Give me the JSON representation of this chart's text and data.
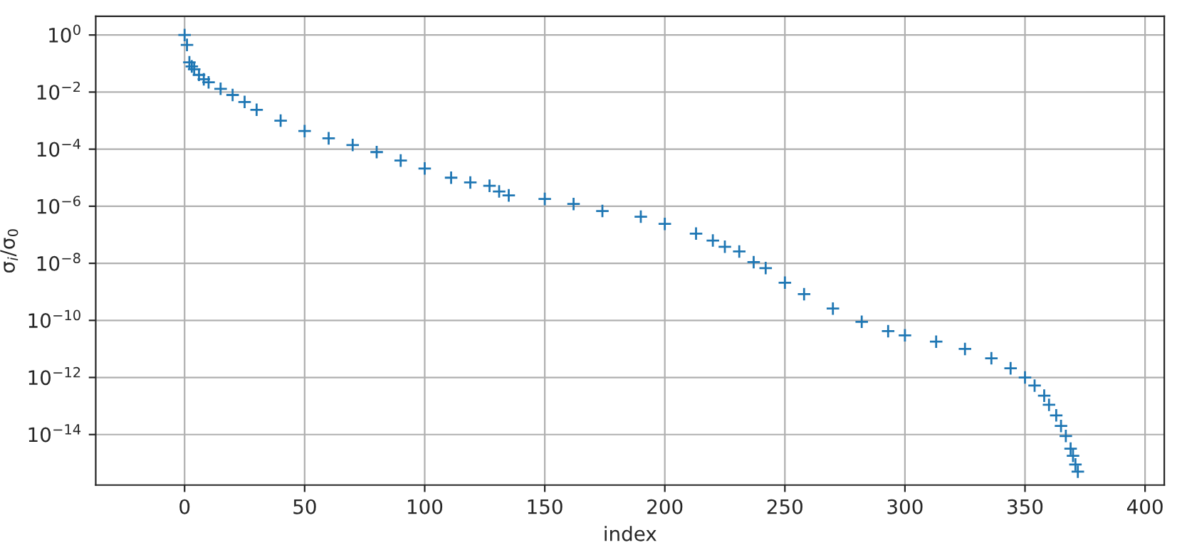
{
  "chart_data": {
    "type": "scatter",
    "xlabel": "index",
    "ylabel": "σ$_{i}$/σ$_{0}$",
    "log": "y",
    "grid": true,
    "marker": "cross",
    "xlim": [
      -37,
      408
    ],
    "xticks": [
      0,
      50,
      100,
      150,
      200,
      250,
      300,
      350,
      400
    ],
    "ylim": [
      1.7e-16,
      4.5
    ],
    "yticks": [
      {
        "value": 1,
        "label": "10$^{0}$"
      },
      {
        "value": 0.01,
        "label": "10$^{−2}$"
      },
      {
        "value": 0.0001,
        "label": "10$^{−4}$"
      },
      {
        "value": 1e-06,
        "label": "10$^{−6}$"
      },
      {
        "value": 1e-08,
        "label": "10$^{−8}$"
      },
      {
        "value": 1e-10,
        "label": "10$^{−10}$"
      },
      {
        "value": 1e-12,
        "label": "10$^{−12}$"
      },
      {
        "value": 1e-14,
        "label": "10$^{−14}$"
      }
    ],
    "series": [
      {
        "color": "#1f77b4",
        "x": [
          0,
          1,
          2,
          3,
          4,
          6,
          8,
          10,
          15,
          20,
          25,
          30,
          40,
          50,
          60,
          70,
          80,
          90,
          100,
          111,
          119,
          127,
          131,
          135,
          150,
          162,
          174,
          190,
          200,
          213,
          220,
          225,
          231,
          237,
          242,
          250,
          258,
          270,
          282,
          293,
          300,
          313,
          325,
          336,
          344,
          350,
          354,
          358,
          360,
          363,
          365,
          367,
          369,
          370,
          371,
          372
        ],
        "values": [
          1,
          0.45,
          0.11,
          0.079,
          0.063,
          0.04,
          0.028,
          0.022,
          0.013,
          0.0079,
          0.0045,
          0.0024,
          0.001,
          0.00043,
          0.00024,
          0.00014,
          7.9e-05,
          4e-05,
          2.1e-05,
          1e-05,
          6.8e-06,
          5.2e-06,
          3.3e-06,
          2.4e-06,
          1.8e-06,
          1.2e-06,
          6.8e-07,
          4.3e-07,
          2.4e-07,
          1.1e-07,
          6.3e-08,
          3.8e-08,
          2.6e-08,
          1.1e-08,
          6.8e-09,
          2.1e-09,
          8.3e-10,
          2.6e-10,
          8.9e-11,
          4.2e-11,
          3e-11,
          1.8e-11,
          1e-11,
          4.7e-12,
          2.1e-12,
          1e-12,
          5.2e-13,
          2.3e-13,
          1.1e-13,
          4.7e-14,
          2e-14,
          8.9e-15,
          3.2e-15,
          1.8e-15,
          8.9e-16,
          5e-16
        ]
      }
    ]
  }
}
